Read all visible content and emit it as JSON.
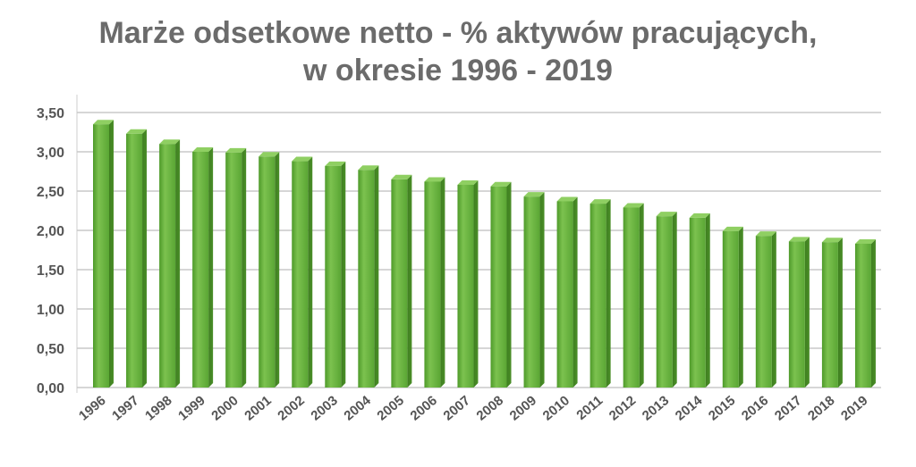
{
  "chart_data": {
    "type": "bar",
    "title_line1": "Marże odsetkowe netto - % aktywów pracujących,",
    "title_line2": "w okresie 1996 - 2019",
    "categories": [
      "1996",
      "1997",
      "1998",
      "1999",
      "2000",
      "2001",
      "2002",
      "2003",
      "2004",
      "2005",
      "2006",
      "2007",
      "2008",
      "2009",
      "2010",
      "2011",
      "2012",
      "2013",
      "2014",
      "2015",
      "2016",
      "2017",
      "2018",
      "2019"
    ],
    "values": [
      3.35,
      3.23,
      3.1,
      3.0,
      2.99,
      2.94,
      2.88,
      2.82,
      2.77,
      2.65,
      2.62,
      2.58,
      2.56,
      2.43,
      2.37,
      2.34,
      2.29,
      2.18,
      2.16,
      1.99,
      1.93,
      1.86,
      1.85,
      1.83
    ],
    "ylim": [
      0,
      3.5
    ],
    "yticks": [
      "0,00",
      "0,50",
      "1,00",
      "1,50",
      "2,00",
      "2,50",
      "3,00",
      "3,50"
    ],
    "grid": true,
    "bar_color": "#6db33f"
  }
}
